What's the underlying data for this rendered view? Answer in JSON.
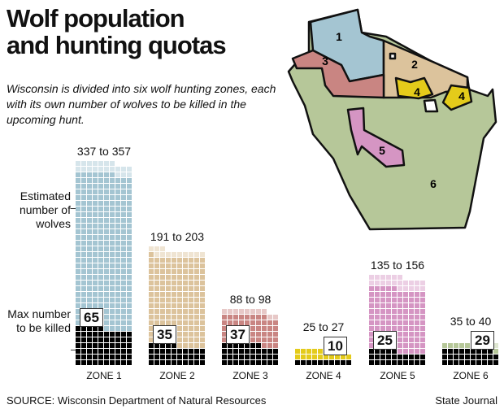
{
  "title_line1": "Wolf population",
  "title_line2": "and hunting quotas",
  "intro": "Wisconsin is divided into six wolf hunting zones, each with its own number of wolves to be killed in the upcoming hunt.",
  "side_labels": {
    "estimated": "Estimated number of wolves",
    "max": "Max number to be killed"
  },
  "source": "SOURCE: Wisconsin Department of Natural Resources",
  "credit": "State Journal",
  "map_labels": [
    "1",
    "2",
    "3",
    "4",
    "4",
    "5",
    "6"
  ],
  "colors": {
    "z1": "#a4c5d2",
    "z2": "#dcc39c",
    "z3": "#c98582",
    "z4": "#e4cb1a",
    "z5": "#d595c3",
    "z6": "#b6c799",
    "quota": "#000000"
  },
  "chart_data": {
    "type": "bar",
    "title": "Wolf population and hunting quotas",
    "unit": "each square = 1 wolf",
    "categories": [
      "ZONE 1",
      "ZONE 2",
      "ZONE 3",
      "ZONE 4",
      "ZONE 5",
      "ZONE 6"
    ],
    "range_labels": [
      "337 to 357",
      "191 to 203",
      "88 to 98",
      "25 to 27",
      "135 to 156",
      "35 to 40"
    ],
    "series": [
      {
        "name": "Estimated wolves (low)",
        "values": [
          337,
          191,
          88,
          25,
          135,
          35
        ]
      },
      {
        "name": "Estimated wolves (high)",
        "values": [
          357,
          203,
          98,
          27,
          156,
          40
        ]
      },
      {
        "name": "Max number to be killed",
        "values": [
          65,
          35,
          37,
          10,
          25,
          29
        ]
      }
    ]
  }
}
